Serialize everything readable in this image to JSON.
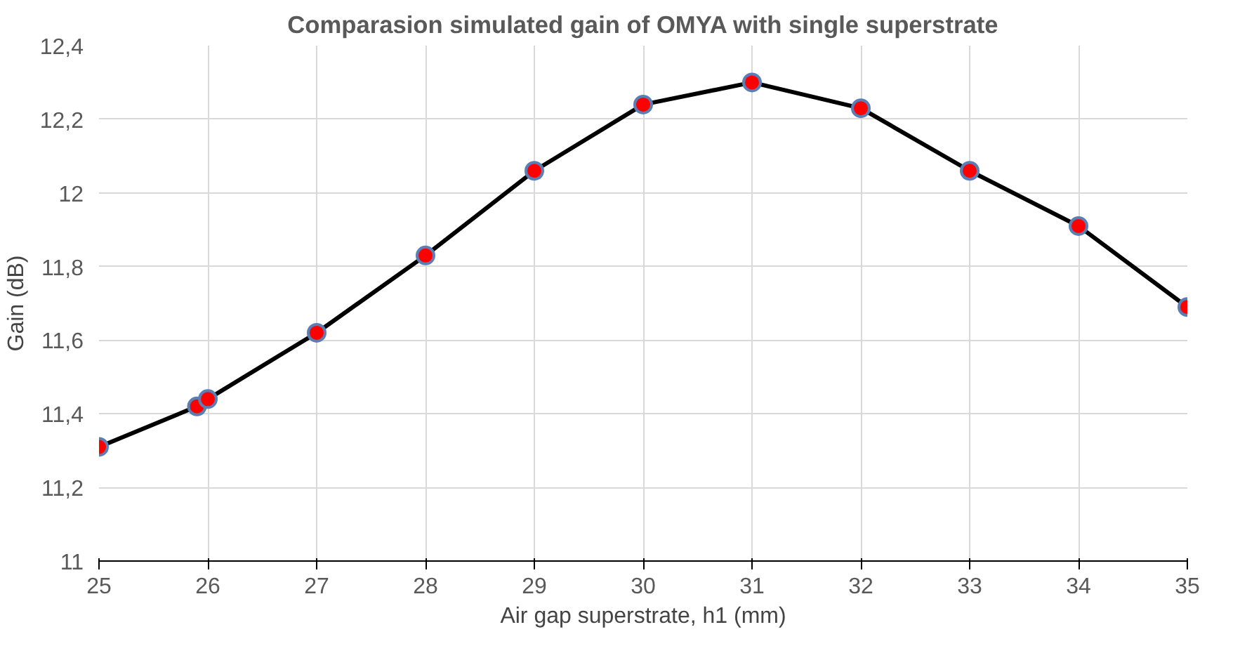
{
  "chart_data": {
    "type": "line",
    "title": "Comparasion simulated gain of OMYA with single superstrate",
    "xlabel": "Air gap superstrate, h1 (mm)",
    "ylabel": "Gain (dB)",
    "x": [
      25,
      25.9,
      26,
      27,
      28,
      29,
      30,
      31,
      32,
      33,
      34,
      35
    ],
    "series": [
      {
        "color": "#000000",
        "colors": [
          "#ff0000",
          "#ff0000",
          "#ff0000",
          "#ff0000",
          "#ff0000",
          "#ff0000",
          "#ff0000",
          "#ff0000",
          "#ff0000",
          "#ff0000",
          "#ff0000",
          "#ff0000"
        ],
        "values": [
          11.31,
          11.42,
          11.44,
          11.62,
          11.83,
          12.06,
          12.24,
          12.3,
          12.23,
          12.06,
          11.91,
          11.69
        ]
      }
    ],
    "xlim": [
      25,
      35
    ],
    "ylim": [
      11,
      12.4
    ],
    "xticks": [
      25,
      26,
      27,
      28,
      29,
      30,
      31,
      32,
      33,
      34,
      35
    ],
    "yticks": [
      11,
      {
        "value": 11.2,
        "label": "11,2"
      },
      {
        "value": 11.4,
        "label": "11,4"
      },
      {
        "value": 11.6,
        "label": "11,6"
      },
      {
        "value": 11.8,
        "label": "11,8"
      },
      12,
      {
        "value": 12.2,
        "label": "12,2"
      },
      {
        "value": 12.4,
        "label": "12,4"
      }
    ],
    "grid": true,
    "marker": "circle",
    "line_style": "solid"
  }
}
